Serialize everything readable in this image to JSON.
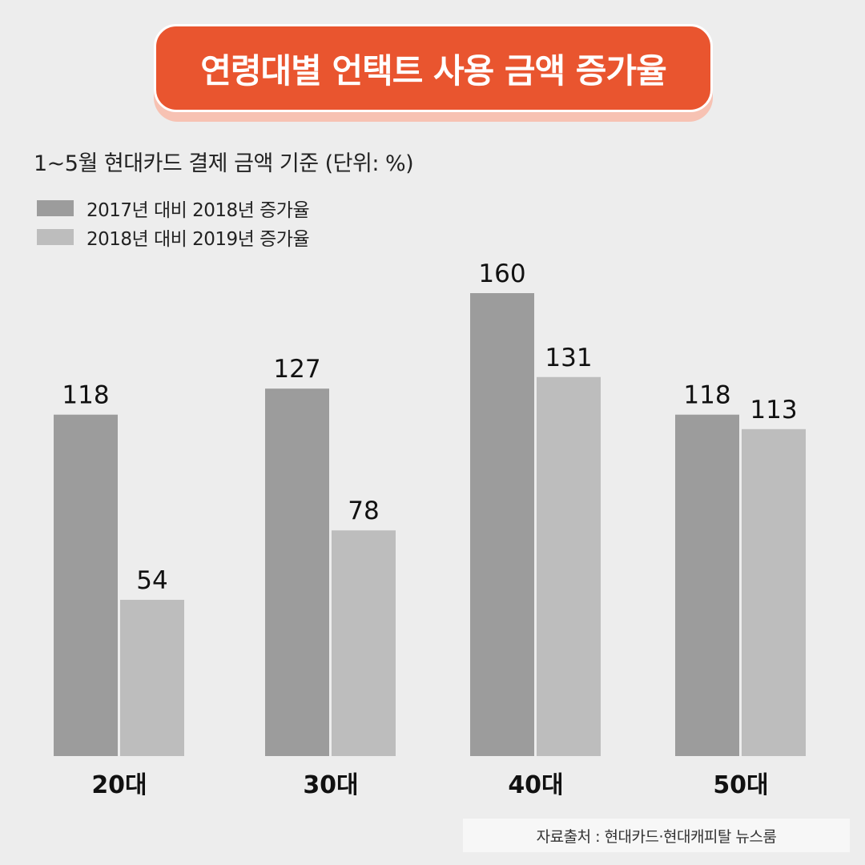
{
  "title": "연령대별 언택트 사용 금액 증가율",
  "subtitle": "1~5월 현대카드 결제 금액 기준 (단위: %)",
  "source": "자료출처 : 현대카드·현대캐피탈 뉴스룸",
  "colors": {
    "background": "#ededed",
    "title_bg": "#e9552f",
    "title_shadow": "#f7c2b3",
    "series1": "#9c9c9c",
    "series2": "#bdbdbd"
  },
  "chart_data": {
    "type": "bar",
    "categories": [
      "20대",
      "30대",
      "40대",
      "50대"
    ],
    "series": [
      {
        "name": "2017년 대비 2018년 증가율",
        "values": [
          118,
          127,
          160,
          118
        ]
      },
      {
        "name": "2018년 대비 2019년 증가율",
        "values": [
          54,
          78,
          131,
          113
        ]
      }
    ],
    "title": "연령대별 언택트 사용 금액 증가율",
    "subtitle": "1~5월 현대카드 결제 금액 기준 (단위: %)",
    "xlabel": "",
    "ylabel": "",
    "ylim": [
      0,
      160
    ],
    "grid": false,
    "legend": "top-left",
    "data_labels": true
  }
}
